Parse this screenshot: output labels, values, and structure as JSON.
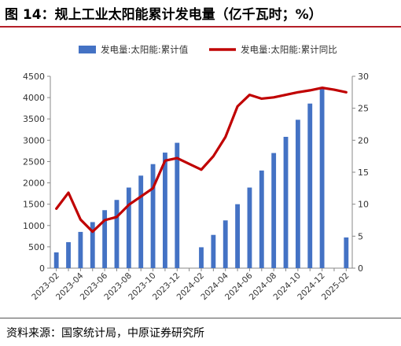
{
  "title": "图 14：规上工业太阳能累计发电量（亿千瓦时；%）",
  "source": "资料来源：国家统计局，中原证券研究所",
  "chart_data": {
    "type": "bar",
    "x": [
      "2023-02",
      "2023-03",
      "2023-04",
      "2023-05",
      "2023-06",
      "2023-07",
      "2023-08",
      "2023-09",
      "2023-10",
      "2023-11",
      "2023-12",
      "2024-01",
      "2024-02",
      "2024-03",
      "2024-04",
      "2024-05",
      "2024-06",
      "2024-07",
      "2024-08",
      "2024-09",
      "2024-10",
      "2024-11",
      "2024-12",
      "2025-01",
      "2025-02"
    ],
    "x_tick_labels": [
      "2023-02",
      "2023-04",
      "2023-06",
      "2023-08",
      "2023-10",
      "2023-12",
      "2024-02",
      "2024-04",
      "2024-06",
      "2024-08",
      "2024-10",
      "2024-12",
      "2025-02"
    ],
    "series": [
      {
        "name": "发电量:太阳能:累计值",
        "kind": "bar",
        "axis": "left",
        "color": "#4472c4",
        "values": [
          370,
          610,
          850,
          1080,
          1360,
          1600,
          1890,
          2170,
          2440,
          2710,
          2940,
          null,
          490,
          780,
          1120,
          1500,
          1890,
          2290,
          2700,
          3080,
          3480,
          3860,
          4250,
          null,
          720
        ]
      },
      {
        "name": "发电量:太阳能:累计同比",
        "kind": "line",
        "axis": "right",
        "color": "#c00000",
        "values": [
          9.3,
          11.8,
          7.6,
          5.7,
          7.5,
          8.0,
          9.9,
          11.2,
          12.5,
          16.8,
          17.2,
          16.3,
          15.4,
          17.5,
          20.5,
          25.3,
          27.1,
          26.5,
          26.7,
          27.1,
          27.5,
          27.8,
          28.2,
          27.9,
          27.5
        ]
      }
    ],
    "y_left": {
      "min": 0,
      "max": 4500,
      "ticks": [
        0,
        500,
        1000,
        1500,
        2000,
        2500,
        3000,
        3500,
        4000,
        4500
      ]
    },
    "y_right": {
      "min": 0,
      "max": 30,
      "ticks": [
        0,
        5,
        10,
        15,
        20,
        25,
        30
      ]
    },
    "grid": false,
    "legend_position": "top"
  }
}
